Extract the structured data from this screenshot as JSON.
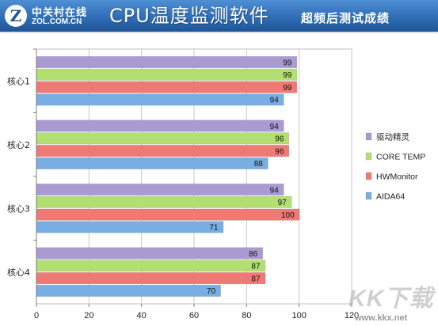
{
  "header": {
    "logo_cn": "中关村在线",
    "logo_en": "ZOL.COM.CN",
    "title": "CPU温度监测软件",
    "subtitle": "超频后测试成绩"
  },
  "watermark": {
    "logo": "KK下载",
    "url": "www.kkx.net"
  },
  "chart_data": {
    "type": "bar",
    "orientation": "horizontal",
    "categories": [
      "核心1",
      "核心2",
      "核心3",
      "核心4"
    ],
    "series": [
      {
        "name": "驱动精灵",
        "color": "#a99bd1",
        "values": [
          99,
          94,
          94,
          86
        ]
      },
      {
        "name": "CORE TEMP",
        "color": "#b2de72",
        "values": [
          99,
          96,
          97,
          87
        ]
      },
      {
        "name": "HWMonitor",
        "color": "#ef7a75",
        "values": [
          99,
          96,
          100,
          87
        ]
      },
      {
        "name": "AIDA64",
        "color": "#79aee3",
        "values": [
          94,
          88,
          71,
          70
        ]
      }
    ],
    "xlim": [
      0,
      120
    ],
    "xticks": [
      0,
      20,
      40,
      60,
      80,
      100,
      120
    ],
    "grid": true,
    "legend": "right"
  }
}
